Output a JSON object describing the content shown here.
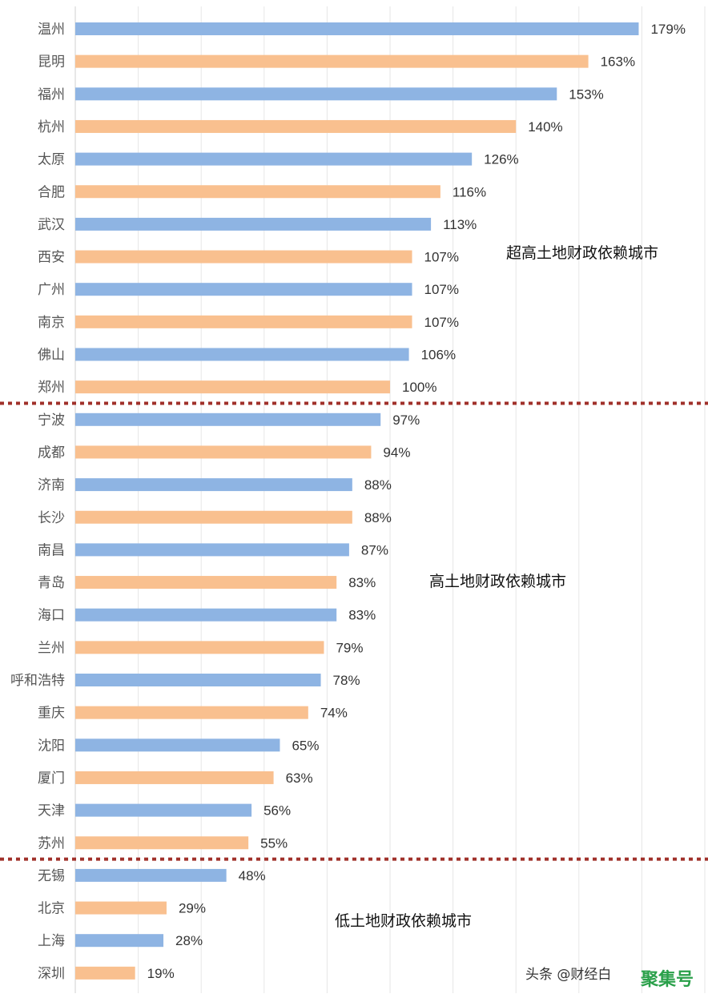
{
  "chart_data": {
    "type": "bar",
    "orientation": "horizontal",
    "categories": [
      "温州",
      "昆明",
      "福州",
      "杭州",
      "太原",
      "合肥",
      "武汉",
      "西安",
      "广州",
      "南京",
      "佛山",
      "郑州",
      "宁波",
      "成都",
      "济南",
      "长沙",
      "南昌",
      "青岛",
      "海口",
      "兰州",
      "呼和浩特",
      "重庆",
      "沈阳",
      "厦门",
      "天津",
      "苏州",
      "无锡",
      "北京",
      "上海",
      "深圳"
    ],
    "values": [
      179,
      163,
      153,
      140,
      126,
      116,
      113,
      107,
      107,
      107,
      106,
      100,
      97,
      94,
      88,
      88,
      87,
      83,
      83,
      79,
      78,
      74,
      65,
      63,
      56,
      55,
      48,
      29,
      28,
      19
    ],
    "value_labels": [
      "179%",
      "163%",
      "153%",
      "140%",
      "126%",
      "116%",
      "113%",
      "107%",
      "107%",
      "107%",
      "106%",
      "100%",
      "97%",
      "94%",
      "88%",
      "88%",
      "87%",
      "83%",
      "83%",
      "79%",
      "78%",
      "74%",
      "65%",
      "63%",
      "56%",
      "55%",
      "48%",
      "29%",
      "28%",
      "19%"
    ],
    "bar_colors": {
      "odd": "#8eb4e3",
      "even": "#f9c08f"
    },
    "grid": true,
    "xlim": [
      0,
      200
    ],
    "zones": [
      {
        "label": "超高土地财政依赖城市",
        "from_index": 0,
        "to_index": 11
      },
      {
        "label": "高土地财政依赖城市",
        "from_index": 12,
        "to_index": 25
      },
      {
        "label": "低土地财政依赖城市",
        "from_index": 26,
        "to_index": 29
      }
    ],
    "divider_color": "#a0302a"
  },
  "watermark": {
    "text": "头条 @财经白",
    "logo": "聚集号"
  }
}
